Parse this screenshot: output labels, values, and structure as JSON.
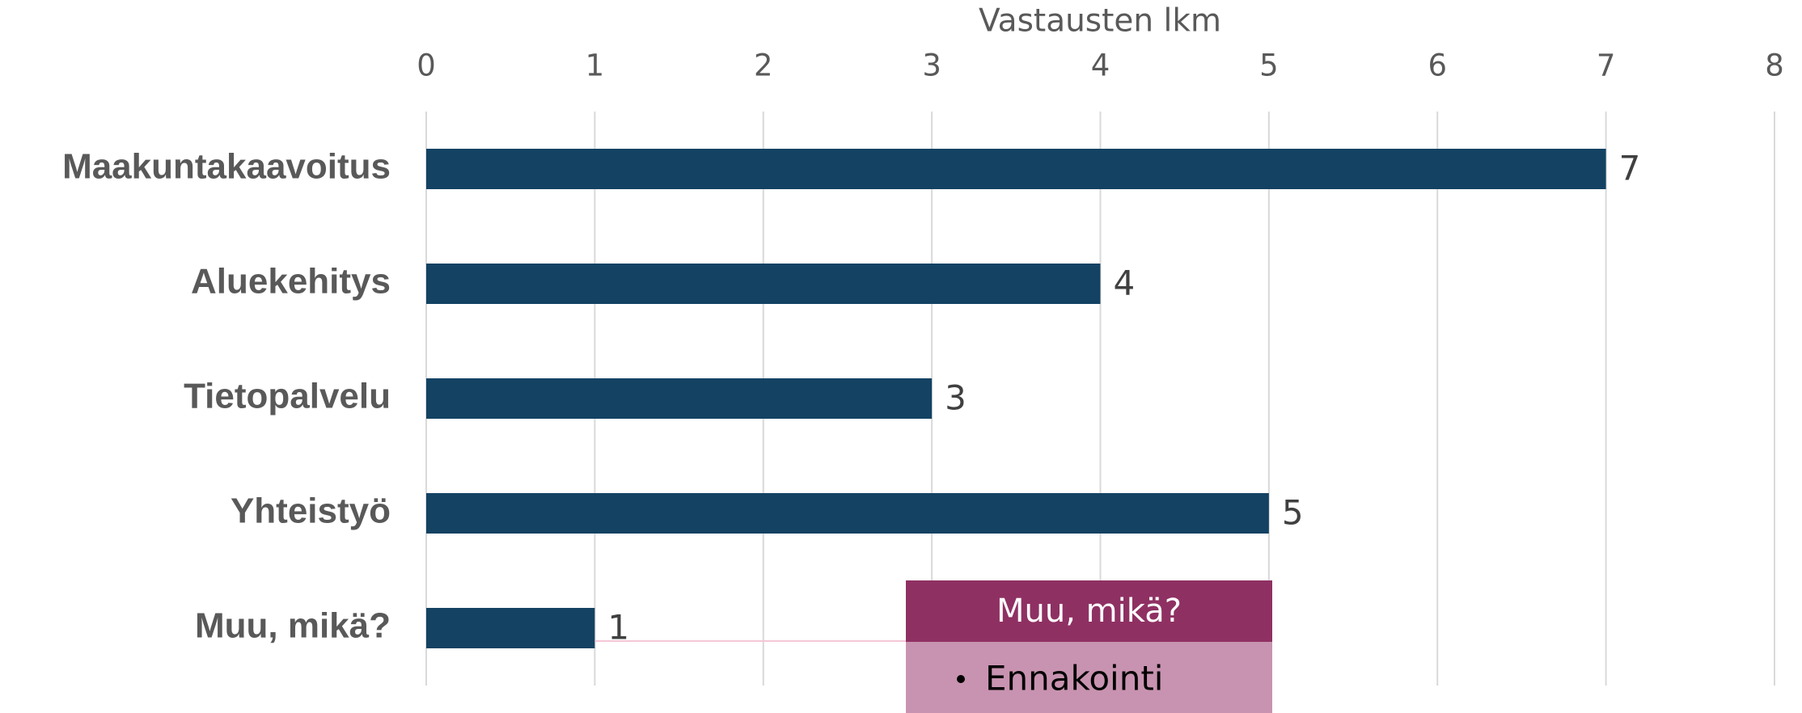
{
  "chart_data": {
    "type": "bar",
    "orientation": "horizontal",
    "x_label": "Vastausten lkm",
    "categories": [
      "Maakuntakaavoitus",
      "Aluekehitys",
      "Tietopalvelu",
      "Yhteistyö",
      "Muu, mikä?"
    ],
    "values": [
      7,
      4,
      3,
      5,
      1
    ],
    "color": "#134263",
    "xlim": [
      0,
      8
    ],
    "xticks": [
      0,
      1,
      2,
      3,
      4,
      5,
      6,
      7,
      8
    ],
    "grid": true,
    "callout": {
      "title": "Muu, mikä?",
      "items": [
        "Ennakointi"
      ]
    }
  }
}
